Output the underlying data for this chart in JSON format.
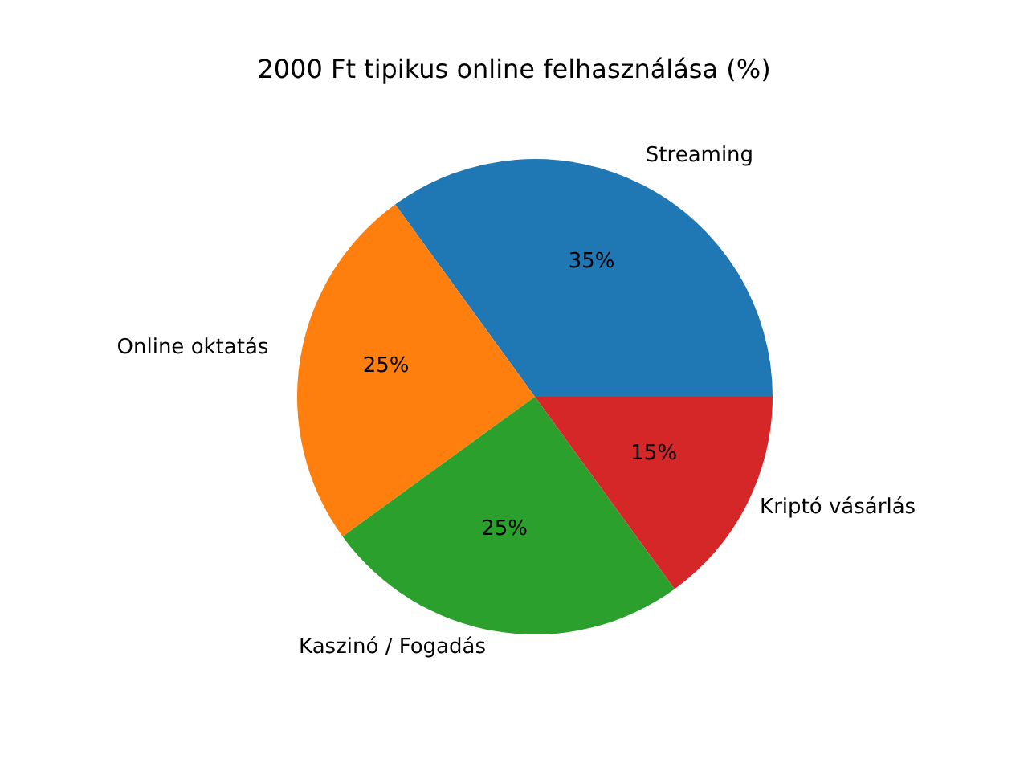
{
  "chart_data": {
    "type": "pie",
    "title": "2000 Ft tipikus online felhasználása (%)",
    "categories": [
      "Streaming",
      "Online oktatás",
      "Kaszinó / Fogadás",
      "Kriptó vásárlás"
    ],
    "values": [
      35,
      25,
      25,
      15
    ],
    "colors": [
      "#1f77b4",
      "#ff7f0e",
      "#2ca02c",
      "#d62728"
    ],
    "value_labels": [
      "35%",
      "25%",
      "25%",
      "15%"
    ],
    "legend": false
  }
}
